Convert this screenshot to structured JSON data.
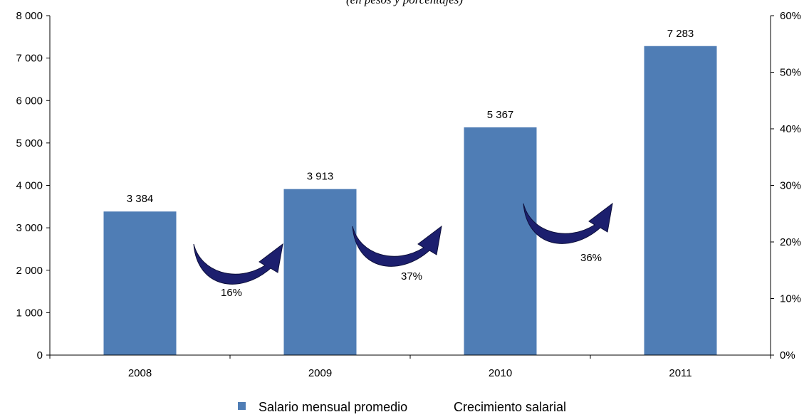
{
  "chart_data": {
    "type": "bar",
    "subtitle": "(en pesos y porcentajes)",
    "categories": [
      "2008",
      "2009",
      "2010",
      "2011"
    ],
    "series": [
      {
        "name": "Salario mensual promedio",
        "values": [
          3384,
          3913,
          5367,
          7283
        ],
        "color": "#4F7DB5"
      }
    ],
    "data_labels": [
      "3 384",
      "3 913",
      "5 367",
      "7 283"
    ],
    "growth": {
      "name": "Crecimiento salarial",
      "labels": [
        "16%",
        "37%",
        "36%"
      ],
      "arrow_color": "#1C1F6E"
    },
    "y_left": {
      "min": 0,
      "max": 8000,
      "ticks": [
        0,
        1000,
        2000,
        3000,
        4000,
        5000,
        6000,
        7000,
        8000
      ],
      "tick_labels": [
        "0",
        "1 000",
        "2 000",
        "3 000",
        "4 000",
        "5 000",
        "6 000",
        "7 000",
        "8 000"
      ]
    },
    "y_right": {
      "min": 0,
      "max": 0.6,
      "tick_labels": [
        "0%",
        "10%",
        "20%",
        "30%",
        "40%",
        "50%",
        "60%"
      ]
    },
    "legend": {
      "placement": "bottom"
    },
    "grid": false
  }
}
